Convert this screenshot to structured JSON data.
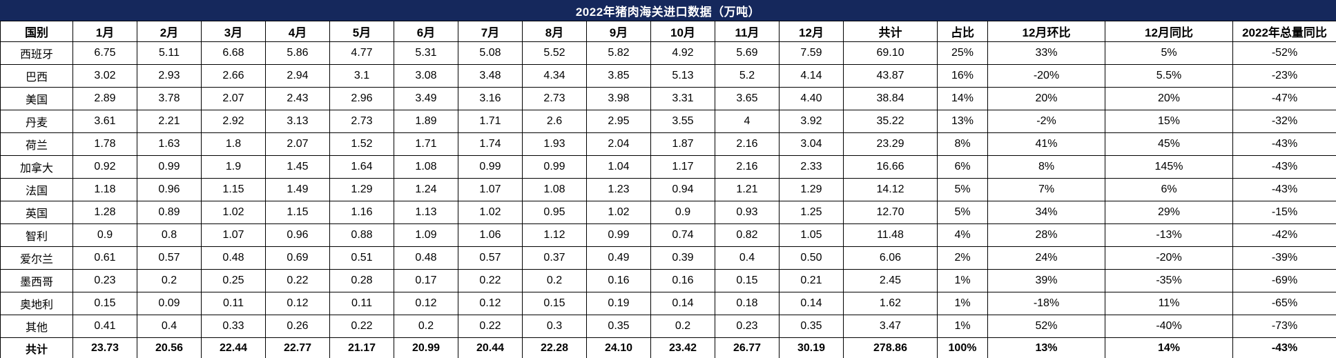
{
  "title": "2022年猪肉海关进口数据（万吨）",
  "colors": {
    "title_bg": "#15285c",
    "title_text": "#ffffff",
    "grid_border": "#000000",
    "cell_bg": "#ffffff"
  },
  "table": {
    "headers": [
      "国别",
      "1月",
      "2月",
      "3月",
      "4月",
      "5月",
      "6月",
      "7月",
      "8月",
      "9月",
      "10月",
      "11月",
      "12月",
      "共计",
      "占比",
      "12月环比",
      "12月同比",
      "2022年总量同比"
    ],
    "rows": [
      {
        "country": "西班牙",
        "values": [
          "6.75",
          "5.11",
          "6.68",
          "5.86",
          "4.77",
          "5.31",
          "5.08",
          "5.52",
          "5.82",
          "4.92",
          "5.69",
          "7.59",
          "69.10",
          "25%",
          "33%",
          "5%",
          "-52%"
        ]
      },
      {
        "country": "巴西",
        "values": [
          "3.02",
          "2.93",
          "2.66",
          "2.94",
          "3.1",
          "3.08",
          "3.48",
          "4.34",
          "3.85",
          "5.13",
          "5.2",
          "4.14",
          "43.87",
          "16%",
          "-20%",
          "5.5%",
          "-23%"
        ]
      },
      {
        "country": "美国",
        "values": [
          "2.89",
          "3.78",
          "2.07",
          "2.43",
          "2.96",
          "3.49",
          "3.16",
          "2.73",
          "3.98",
          "3.31",
          "3.65",
          "4.40",
          "38.84",
          "14%",
          "20%",
          "20%",
          "-47%"
        ]
      },
      {
        "country": "丹麦",
        "values": [
          "3.61",
          "2.21",
          "2.92",
          "3.13",
          "2.73",
          "1.89",
          "1.71",
          "2.6",
          "2.95",
          "3.55",
          "4",
          "3.92",
          "35.22",
          "13%",
          "-2%",
          "15%",
          "-32%"
        ]
      },
      {
        "country": "荷兰",
        "values": [
          "1.78",
          "1.63",
          "1.8",
          "2.07",
          "1.52",
          "1.71",
          "1.74",
          "1.93",
          "2.04",
          "1.87",
          "2.16",
          "3.04",
          "23.29",
          "8%",
          "41%",
          "45%",
          "-43%"
        ]
      },
      {
        "country": "加拿大",
        "values": [
          "0.92",
          "0.99",
          "1.9",
          "1.45",
          "1.64",
          "1.08",
          "0.99",
          "0.99",
          "1.04",
          "1.17",
          "2.16",
          "2.33",
          "16.66",
          "6%",
          "8%",
          "145%",
          "-43%"
        ]
      },
      {
        "country": "法国",
        "values": [
          "1.18",
          "0.96",
          "1.15",
          "1.49",
          "1.29",
          "1.24",
          "1.07",
          "1.08",
          "1.23",
          "0.94",
          "1.21",
          "1.29",
          "14.12",
          "5%",
          "7%",
          "6%",
          "-43%"
        ]
      },
      {
        "country": "英国",
        "values": [
          "1.28",
          "0.89",
          "1.02",
          "1.15",
          "1.16",
          "1.13",
          "1.02",
          "0.95",
          "1.02",
          "0.9",
          "0.93",
          "1.25",
          "12.70",
          "5%",
          "34%",
          "29%",
          "-15%"
        ]
      },
      {
        "country": "智利",
        "values": [
          "0.9",
          "0.8",
          "1.07",
          "0.96",
          "0.88",
          "1.09",
          "1.06",
          "1.12",
          "0.99",
          "0.74",
          "0.82",
          "1.05",
          "11.48",
          "4%",
          "28%",
          "-13%",
          "-42%"
        ]
      },
      {
        "country": "爱尔兰",
        "values": [
          "0.61",
          "0.57",
          "0.48",
          "0.69",
          "0.51",
          "0.48",
          "0.57",
          "0.37",
          "0.49",
          "0.39",
          "0.4",
          "0.50",
          "6.06",
          "2%",
          "24%",
          "-20%",
          "-39%"
        ]
      },
      {
        "country": "墨西哥",
        "values": [
          "0.23",
          "0.2",
          "0.25",
          "0.22",
          "0.28",
          "0.17",
          "0.22",
          "0.2",
          "0.16",
          "0.16",
          "0.15",
          "0.21",
          "2.45",
          "1%",
          "39%",
          "-35%",
          "-69%"
        ]
      },
      {
        "country": "奥地利",
        "values": [
          "0.15",
          "0.09",
          "0.11",
          "0.12",
          "0.11",
          "0.12",
          "0.12",
          "0.15",
          "0.19",
          "0.14",
          "0.18",
          "0.14",
          "1.62",
          "1%",
          "-18%",
          "11%",
          "-65%"
        ]
      },
      {
        "country": "其他",
        "values": [
          "0.41",
          "0.4",
          "0.33",
          "0.26",
          "0.22",
          "0.2",
          "0.22",
          "0.3",
          "0.35",
          "0.2",
          "0.23",
          "0.35",
          "3.47",
          "1%",
          "52%",
          "-40%",
          "-73%"
        ]
      }
    ],
    "total_row": {
      "label": "共计",
      "values": [
        "23.73",
        "20.56",
        "22.44",
        "22.77",
        "21.17",
        "20.99",
        "20.44",
        "22.28",
        "24.10",
        "23.42",
        "26.77",
        "30.19",
        "278.86",
        "100%",
        "13%",
        "14%",
        "-43%"
      ]
    }
  }
}
